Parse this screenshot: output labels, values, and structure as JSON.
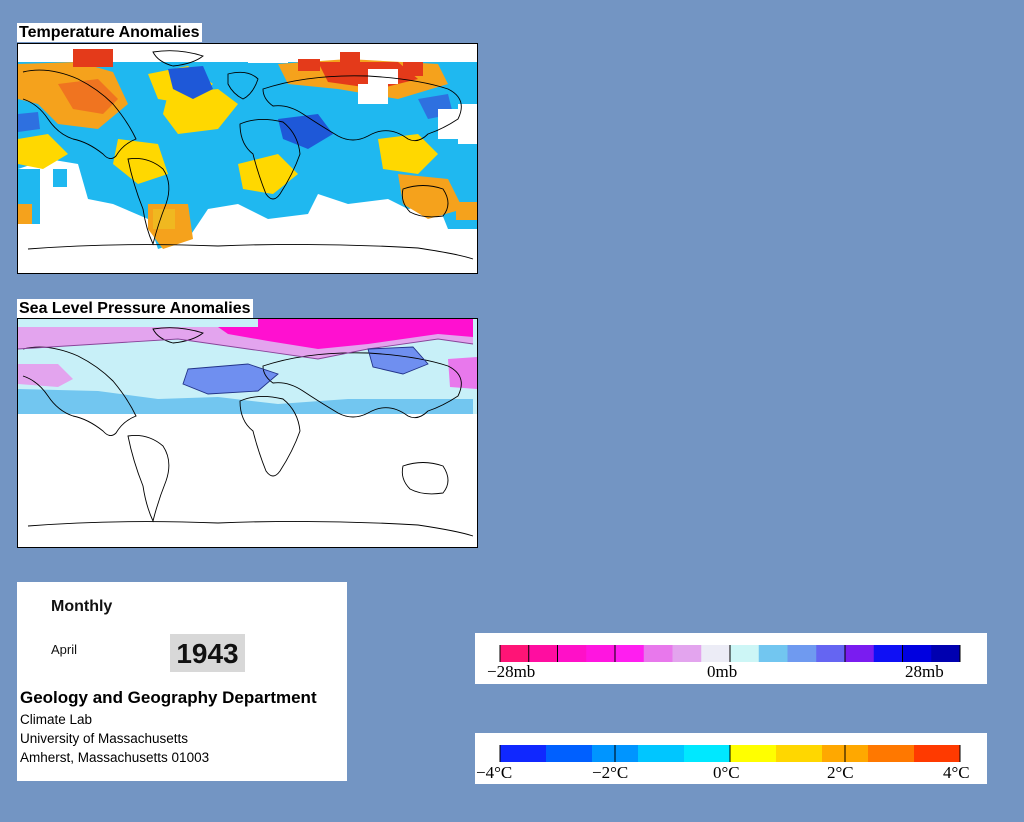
{
  "panels": {
    "temperature_title": "Temperature Anomalies",
    "pressure_title": "Sea Level Pressure Anomalies"
  },
  "info": {
    "frequency": "Monthly",
    "month": "April",
    "year": "1943",
    "department": "Geology and Geography Department",
    "lab": "Climate Lab",
    "university": "University of Massachusetts",
    "address": "Amherst, Massachusetts 01003"
  },
  "pressure_scale": {
    "labels": [
      "−28mb",
      "0mb",
      "28mb"
    ],
    "colors": [
      "#ff1476",
      "#ff0da0",
      "#ff10c8",
      "#ff15e0",
      "#ff1ef0",
      "#e878ec",
      "#e3a4ee",
      "#ececf6",
      "#cdf6f6",
      "#72c6f0",
      "#6f9af0",
      "#6565f2",
      "#7a1cf0",
      "#0f10f5",
      "#0000e0",
      "#0000b0"
    ]
  },
  "temperature_scale": {
    "labels": [
      "−4°C",
      "−2°C",
      "0°C",
      "2°C",
      "4°C"
    ],
    "colors": [
      "#1028ff",
      "#0060ff",
      "#0095ff",
      "#00c6ff",
      "#00e8ff",
      "#ffff00",
      "#ffd700",
      "#ffa800",
      "#ff7800",
      "#ff3a00"
    ]
  },
  "colors": {
    "background": "#7395c3",
    "warm": "#f5a21c",
    "hot": "#e43a1a",
    "cool": "#1fb8f0",
    "cold": "#1e58d8",
    "neutral": "#ffd800",
    "pressure_high": "#ff10d0",
    "pressure_low": "#6f8ff0",
    "pressure_pale": "#c8f0f8"
  }
}
